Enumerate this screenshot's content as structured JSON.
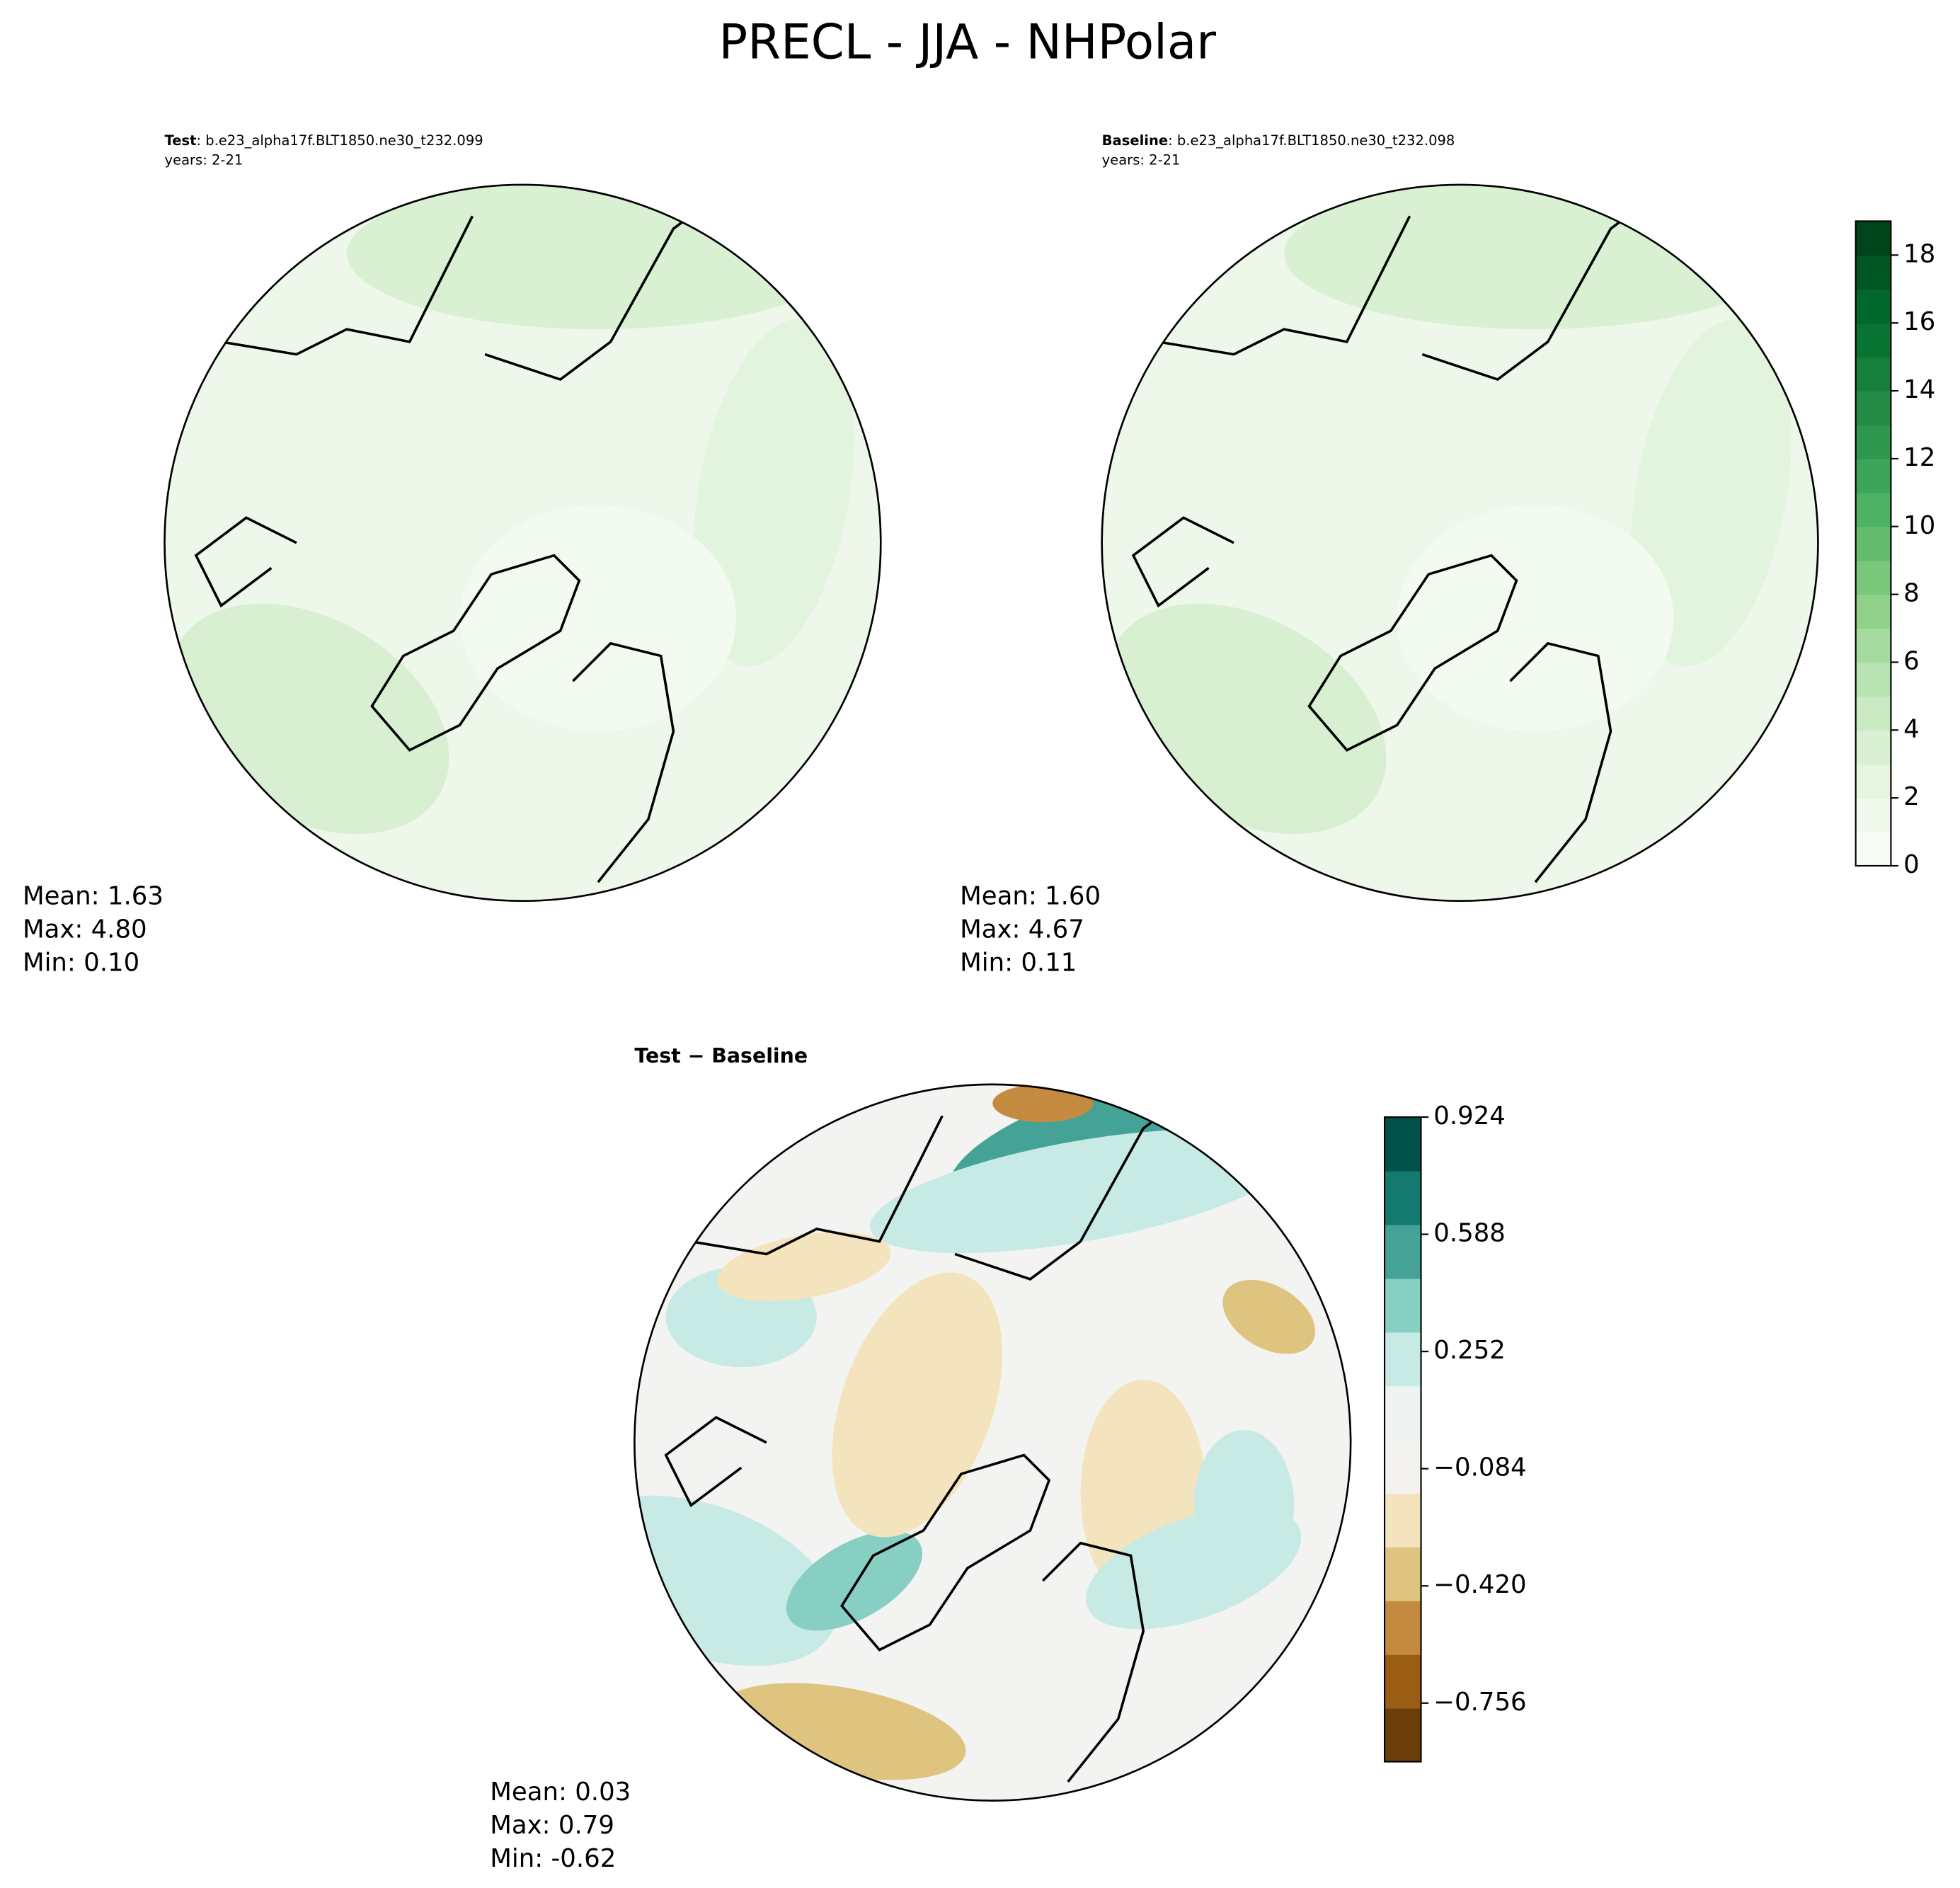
{
  "title": "PRECL - JJA - NHPolar",
  "panels": [
    {
      "name": "Test",
      "case": ": b.e23_alpha17f.BLT1850.ne30_t232.099",
      "years": "years: 2-21",
      "stats": [
        "Mean:  1.63",
        "Max:  4.80",
        "Min:  0.10"
      ]
    },
    {
      "name": "Baseline",
      "case": ": b.e23_alpha17f.BLT1850.ne30_t232.098",
      "years": "years: 2-21",
      "stats": [
        "Mean:  1.60",
        "Max:  4.67",
        "Min:  0.11"
      ]
    }
  ],
  "difference": {
    "title": "Test − Baseline",
    "stats": [
      "Mean:  0.03",
      "Max:  0.79",
      "Min: -0.62"
    ]
  },
  "colorbars": [
    {
      "lim": [
        0,
        19
      ],
      "ticks": [
        0,
        2,
        4,
        6,
        8,
        10,
        12,
        14,
        16,
        18
      ],
      "colors": [
        "#f7fcf5",
        "#eff9ec",
        "#e5f5e0",
        "#d9f0d3",
        "#c9eac2",
        "#b8e3b2",
        "#a5db9f",
        "#91d18c",
        "#7bc87c",
        "#64bc6f",
        "#4eb264",
        "#3ca559",
        "#2f984f",
        "#238b45",
        "#167f3b",
        "#087432",
        "#00682a",
        "#005622",
        "#00441b"
      ]
    },
    {
      "lim": [
        -0.924,
        0.924
      ],
      "ticks": [
        {
          "value": -0.756,
          "label": "−0.756"
        },
        {
          "value": -0.42,
          "label": "−0.420"
        },
        {
          "value": -0.084,
          "label": "−0.084"
        },
        0.252,
        0.588,
        0.924
      ],
      "colors": [
        "#6a3d0a",
        "#9b5c13",
        "#c48b40",
        "#dfc47f",
        "#f4e4be",
        "#f3f2ee",
        "#eef3f2",
        "#c7eae5",
        "#87cfc3",
        "#45a297",
        "#147a70",
        "#01524a"
      ]
    }
  ]
}
